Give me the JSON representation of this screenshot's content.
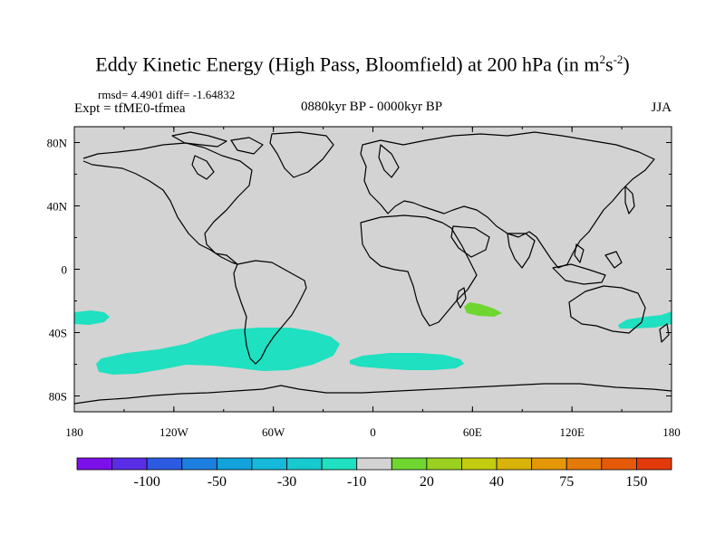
{
  "title": "Eddy Kinetic Energy (High Pass, Bloomfield) at 200 hPa (in m",
  "title_units": {
    "exp1": "2",
    "mid": "s",
    "exp2": "-2",
    "close": ")"
  },
  "stats": "rmsd= 4.4901 diff= -1.64832",
  "expt": "Expt = tfME0-tfmea",
  "subtitle": "0880kyr BP - 0000kyr BP",
  "season": "JJA",
  "colors": {
    "land_ocean": "#d3d3d3",
    "coast": "#000000",
    "anomaly_neg10_cyan": "#1fe0c0",
    "anomaly_pos20_green": "#6fd630"
  },
  "map": {
    "lat_labels": [
      "80N",
      "40N",
      "0",
      "40S",
      "80S"
    ],
    "lon_labels": [
      "180",
      "120W",
      "60W",
      "0",
      "60E",
      "120E",
      "180"
    ]
  },
  "colorbar": {
    "colors": [
      "#7b10e8",
      "#5a2ee6",
      "#2c5be2",
      "#1c7fe0",
      "#12a2dc",
      "#16b9da",
      "#18c9d0",
      "#1fe0c0",
      "#d3d3d3",
      "#6fd630",
      "#9ad020",
      "#c3cc10",
      "#d9b30a",
      "#e49808",
      "#e57a08",
      "#e45a08",
      "#e23a0a"
    ],
    "labels": [
      "-100",
      "-50",
      "-30",
      "-10",
      "20",
      "40",
      "75",
      "150"
    ]
  }
}
